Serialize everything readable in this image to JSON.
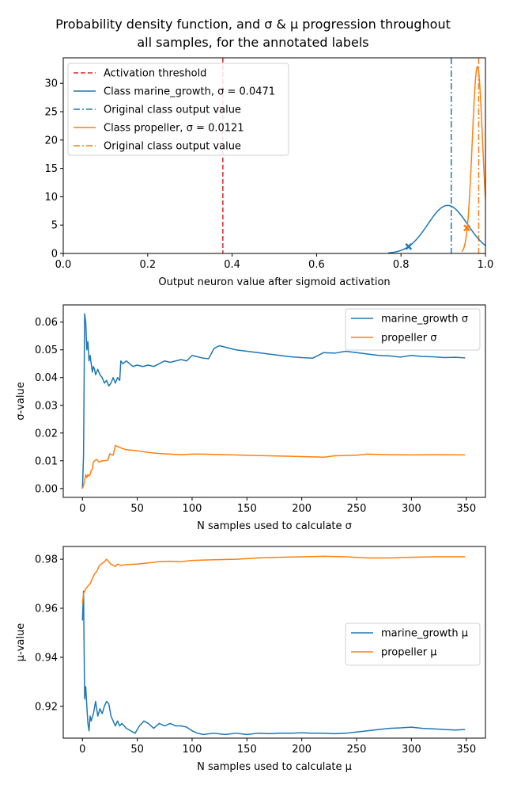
{
  "figure": {
    "title_lines": [
      "Probability density function, and σ & μ progression throughout",
      "all samples, for the annotated labels"
    ]
  },
  "colors": {
    "blue": "#1f77b4",
    "orange": "#ff7f0e",
    "red": "#d62728",
    "axis": "#000000",
    "legend_border": "#d0d0d0"
  },
  "chart_data": [
    {
      "type": "line",
      "id": "pdf",
      "xlabel": "Output neuron value after sigmoid activation",
      "ylabel": "",
      "xlim": [
        0.0,
        1.0
      ],
      "ylim": [
        0,
        34.5
      ],
      "xticks": [
        0.0,
        0.2,
        0.4,
        0.6,
        0.8,
        1.0
      ],
      "xtick_labels": [
        "0.0",
        "0.2",
        "0.4",
        "0.6",
        "0.8",
        "1.0"
      ],
      "yticks": [
        0,
        5,
        10,
        15,
        20,
        25,
        30
      ],
      "ytick_labels": [
        "0",
        "5",
        "10",
        "15",
        "20",
        "25",
        "30"
      ],
      "grid": false,
      "legend_position": "upper-left",
      "legend": [
        {
          "label": "Activation threshold",
          "color": "#d62728",
          "style": "dashed"
        },
        {
          "label": "Class marine_growth, σ = 0.0471",
          "color": "#1f77b4",
          "style": "solid"
        },
        {
          "label": "Original class output value",
          "color": "#1f77b4",
          "style": "dashdot"
        },
        {
          "label": "Class propeller, σ = 0.0121",
          "color": "#ff7f0e",
          "style": "solid"
        },
        {
          "label": "Original class output value",
          "color": "#ff7f0e",
          "style": "dashdot"
        }
      ],
      "vlines": [
        {
          "x": 0.378,
          "color": "#d62728",
          "style": "dashed"
        },
        {
          "x": 0.919,
          "color": "#1f77b4",
          "style": "dashdot"
        },
        {
          "x": 0.984,
          "color": "#ff7f0e",
          "style": "dashdot"
        }
      ],
      "curves": [
        {
          "name": "marine_growth",
          "color": "#1f77b4",
          "mu": 0.9105,
          "sigma": 0.0471,
          "x_range": [
            0.77,
            1.0
          ]
        },
        {
          "name": "propeller",
          "color": "#ff7f0e",
          "mu": 0.981,
          "sigma": 0.0121,
          "x_range": [
            0.944,
            1.0
          ]
        }
      ],
      "markers": [
        {
          "x": 0.818,
          "y": 1.2,
          "color": "#1f77b4",
          "shape": "x"
        },
        {
          "x": 0.956,
          "y": 4.5,
          "color": "#ff7f0e",
          "shape": "x"
        }
      ]
    },
    {
      "type": "line",
      "id": "sigma",
      "xlabel": "N samples used to calculate σ",
      "ylabel": "σ-value",
      "xlim": [
        -17.5,
        367.5
      ],
      "ylim": [
        -0.0032,
        0.0662
      ],
      "xticks": [
        0,
        50,
        100,
        150,
        200,
        250,
        300,
        350
      ],
      "xtick_labels": [
        "0",
        "50",
        "100",
        "150",
        "200",
        "250",
        "300",
        "350"
      ],
      "yticks": [
        0.0,
        0.01,
        0.02,
        0.03,
        0.04,
        0.05,
        0.06
      ],
      "ytick_labels": [
        "0.00",
        "0.01",
        "0.02",
        "0.03",
        "0.04",
        "0.05",
        "0.06"
      ],
      "grid": false,
      "legend_position": "upper-right",
      "series": [
        {
          "name": "marine_growth σ",
          "color": "#1f77b4",
          "points": [
            [
              0,
              0.0
            ],
            [
              1,
              0.012
            ],
            [
              2,
              0.063
            ],
            [
              3,
              0.06
            ],
            [
              4,
              0.05
            ],
            [
              5,
              0.053
            ],
            [
              6,
              0.046
            ],
            [
              7,
              0.048
            ],
            [
              8,
              0.045
            ],
            [
              9,
              0.042
            ],
            [
              10,
              0.044
            ],
            [
              11,
              0.043
            ],
            [
              12,
              0.041
            ],
            [
              14,
              0.043
            ],
            [
              16,
              0.041
            ],
            [
              18,
              0.04
            ],
            [
              20,
              0.038
            ],
            [
              22,
              0.039
            ],
            [
              24,
              0.037
            ],
            [
              26,
              0.038
            ],
            [
              28,
              0.04
            ],
            [
              30,
              0.038
            ],
            [
              32,
              0.04
            ],
            [
              34,
              0.039
            ],
            [
              35,
              0.046
            ],
            [
              37,
              0.045
            ],
            [
              40,
              0.046
            ],
            [
              43,
              0.045
            ],
            [
              46,
              0.044
            ],
            [
              50,
              0.0445
            ],
            [
              55,
              0.044
            ],
            [
              60,
              0.0445
            ],
            [
              65,
              0.044
            ],
            [
              70,
              0.045
            ],
            [
              75,
              0.046
            ],
            [
              80,
              0.0455
            ],
            [
              85,
              0.046
            ],
            [
              90,
              0.0465
            ],
            [
              95,
              0.046
            ],
            [
              100,
              0.048
            ],
            [
              105,
              0.0475
            ],
            [
              110,
              0.047
            ],
            [
              115,
              0.0468
            ],
            [
              120,
              0.0505
            ],
            [
              125,
              0.0515
            ],
            [
              130,
              0.051
            ],
            [
              140,
              0.05
            ],
            [
              150,
              0.0495
            ],
            [
              160,
              0.049
            ],
            [
              170,
              0.0485
            ],
            [
              180,
              0.048
            ],
            [
              190,
              0.0475
            ],
            [
              200,
              0.0472
            ],
            [
              210,
              0.047
            ],
            [
              220,
              0.049
            ],
            [
              230,
              0.0488
            ],
            [
              240,
              0.0495
            ],
            [
              250,
              0.049
            ],
            [
              260,
              0.0485
            ],
            [
              270,
              0.048
            ],
            [
              280,
              0.0478
            ],
            [
              290,
              0.0474
            ],
            [
              300,
              0.048
            ],
            [
              310,
              0.0476
            ],
            [
              320,
              0.0475
            ],
            [
              330,
              0.0472
            ],
            [
              340,
              0.0473
            ],
            [
              349,
              0.0471
            ]
          ]
        },
        {
          "name": "propeller σ",
          "color": "#ff7f0e",
          "points": [
            [
              0,
              0.0
            ],
            [
              1,
              0.001
            ],
            [
              2,
              0.003
            ],
            [
              3,
              0.005
            ],
            [
              4,
              0.004
            ],
            [
              5,
              0.005
            ],
            [
              6,
              0.0045
            ],
            [
              7,
              0.005
            ],
            [
              8,
              0.0065
            ],
            [
              9,
              0.007
            ],
            [
              10,
              0.0095
            ],
            [
              11,
              0.01
            ],
            [
              13,
              0.0105
            ],
            [
              15,
              0.0095
            ],
            [
              18,
              0.01
            ],
            [
              20,
              0.01
            ],
            [
              23,
              0.0102
            ],
            [
              25,
              0.0125
            ],
            [
              28,
              0.012
            ],
            [
              30,
              0.0155
            ],
            [
              33,
              0.015
            ],
            [
              36,
              0.0145
            ],
            [
              40,
              0.014
            ],
            [
              45,
              0.0138
            ],
            [
              50,
              0.0136
            ],
            [
              55,
              0.0133
            ],
            [
              60,
              0.013
            ],
            [
              65,
              0.0128
            ],
            [
              70,
              0.0126
            ],
            [
              80,
              0.0124
            ],
            [
              90,
              0.0122
            ],
            [
              100,
              0.0124
            ],
            [
              110,
              0.0124
            ],
            [
              130,
              0.0122
            ],
            [
              150,
              0.012
            ],
            [
              170,
              0.0118
            ],
            [
              190,
              0.0116
            ],
            [
              210,
              0.0114
            ],
            [
              220,
              0.0113
            ],
            [
              230,
              0.0118
            ],
            [
              250,
              0.012
            ],
            [
              260,
              0.0124
            ],
            [
              280,
              0.0122
            ],
            [
              300,
              0.0121
            ],
            [
              320,
              0.0122
            ],
            [
              349,
              0.0121
            ]
          ]
        }
      ]
    },
    {
      "type": "line",
      "id": "mu",
      "xlabel": "N samples used to calculate μ",
      "ylabel": "μ-value",
      "xlim": [
        -17.5,
        367.5
      ],
      "ylim": [
        0.907,
        0.9852
      ],
      "xticks": [
        0,
        50,
        100,
        150,
        200,
        250,
        300,
        350
      ],
      "xtick_labels": [
        "0",
        "50",
        "100",
        "150",
        "200",
        "250",
        "300",
        "350"
      ],
      "yticks": [
        0.92,
        0.94,
        0.96,
        0.98
      ],
      "ytick_labels": [
        "0.92",
        "0.94",
        "0.96",
        "0.98"
      ],
      "grid": false,
      "legend_position": "center-right",
      "series": [
        {
          "name": "marine_growth μ",
          "color": "#1f77b4",
          "points": [
            [
              0,
              0.955
            ],
            [
              1,
              0.967
            ],
            [
              2,
              0.923
            ],
            [
              3,
              0.928
            ],
            [
              4,
              0.92
            ],
            [
              5,
              0.913
            ],
            [
              6,
              0.91
            ],
            [
              7,
              0.916
            ],
            [
              8,
              0.914
            ],
            [
              10,
              0.917
            ],
            [
              12,
              0.922
            ],
            [
              14,
              0.916
            ],
            [
              16,
              0.919
            ],
            [
              18,
              0.917
            ],
            [
              20,
              0.92
            ],
            [
              22,
              0.922
            ],
            [
              24,
              0.921
            ],
            [
              26,
              0.916
            ],
            [
              28,
              0.914
            ],
            [
              30,
              0.912
            ],
            [
              32,
              0.914
            ],
            [
              34,
              0.912
            ],
            [
              36,
              0.913
            ],
            [
              40,
              0.911
            ],
            [
              44,
              0.91
            ],
            [
              48,
              0.909
            ],
            [
              52,
              0.912
            ],
            [
              56,
              0.914
            ],
            [
              60,
              0.913
            ],
            [
              65,
              0.911
            ],
            [
              70,
              0.913
            ],
            [
              75,
              0.912
            ],
            [
              80,
              0.913
            ],
            [
              85,
              0.912
            ],
            [
              90,
              0.912
            ],
            [
              95,
              0.9115
            ],
            [
              100,
              0.91
            ],
            [
              105,
              0.909
            ],
            [
              110,
              0.9085
            ],
            [
              120,
              0.909
            ],
            [
              130,
              0.9085
            ],
            [
              140,
              0.909
            ],
            [
              150,
              0.9085
            ],
            [
              160,
              0.909
            ],
            [
              170,
              0.9088
            ],
            [
              180,
              0.909
            ],
            [
              190,
              0.909
            ],
            [
              200,
              0.9092
            ],
            [
              210,
              0.909
            ],
            [
              220,
              0.909
            ],
            [
              230,
              0.9088
            ],
            [
              240,
              0.909
            ],
            [
              250,
              0.9095
            ],
            [
              260,
              0.91
            ],
            [
              270,
              0.9105
            ],
            [
              280,
              0.911
            ],
            [
              290,
              0.9112
            ],
            [
              300,
              0.9115
            ],
            [
              310,
              0.911
            ],
            [
              320,
              0.9108
            ],
            [
              330,
              0.9105
            ],
            [
              340,
              0.9103
            ],
            [
              349,
              0.9105
            ]
          ]
        },
        {
          "name": "propeller μ",
          "color": "#ff7f0e",
          "points": [
            [
              0,
              0.962
            ],
            [
              1,
              0.966
            ],
            [
              3,
              0.968
            ],
            [
              5,
              0.969
            ],
            [
              7,
              0.97
            ],
            [
              9,
              0.972
            ],
            [
              11,
              0.974
            ],
            [
              13,
              0.975
            ],
            [
              15,
              0.977
            ],
            [
              17,
              0.978
            ],
            [
              20,
              0.979
            ],
            [
              22,
              0.98
            ],
            [
              24,
              0.979
            ],
            [
              26,
              0.978
            ],
            [
              28,
              0.9775
            ],
            [
              30,
              0.977
            ],
            [
              32,
              0.978
            ],
            [
              35,
              0.9775
            ],
            [
              40,
              0.9778
            ],
            [
              50,
              0.978
            ],
            [
              60,
              0.9785
            ],
            [
              70,
              0.979
            ],
            [
              80,
              0.9792
            ],
            [
              90,
              0.979
            ],
            [
              100,
              0.9795
            ],
            [
              120,
              0.9798
            ],
            [
              140,
              0.98
            ],
            [
              160,
              0.9805
            ],
            [
              180,
              0.9808
            ],
            [
              200,
              0.981
            ],
            [
              220,
              0.9812
            ],
            [
              240,
              0.981
            ],
            [
              260,
              0.9805
            ],
            [
              280,
              0.9805
            ],
            [
              300,
              0.9808
            ],
            [
              320,
              0.981
            ],
            [
              349,
              0.981
            ]
          ]
        }
      ]
    }
  ]
}
